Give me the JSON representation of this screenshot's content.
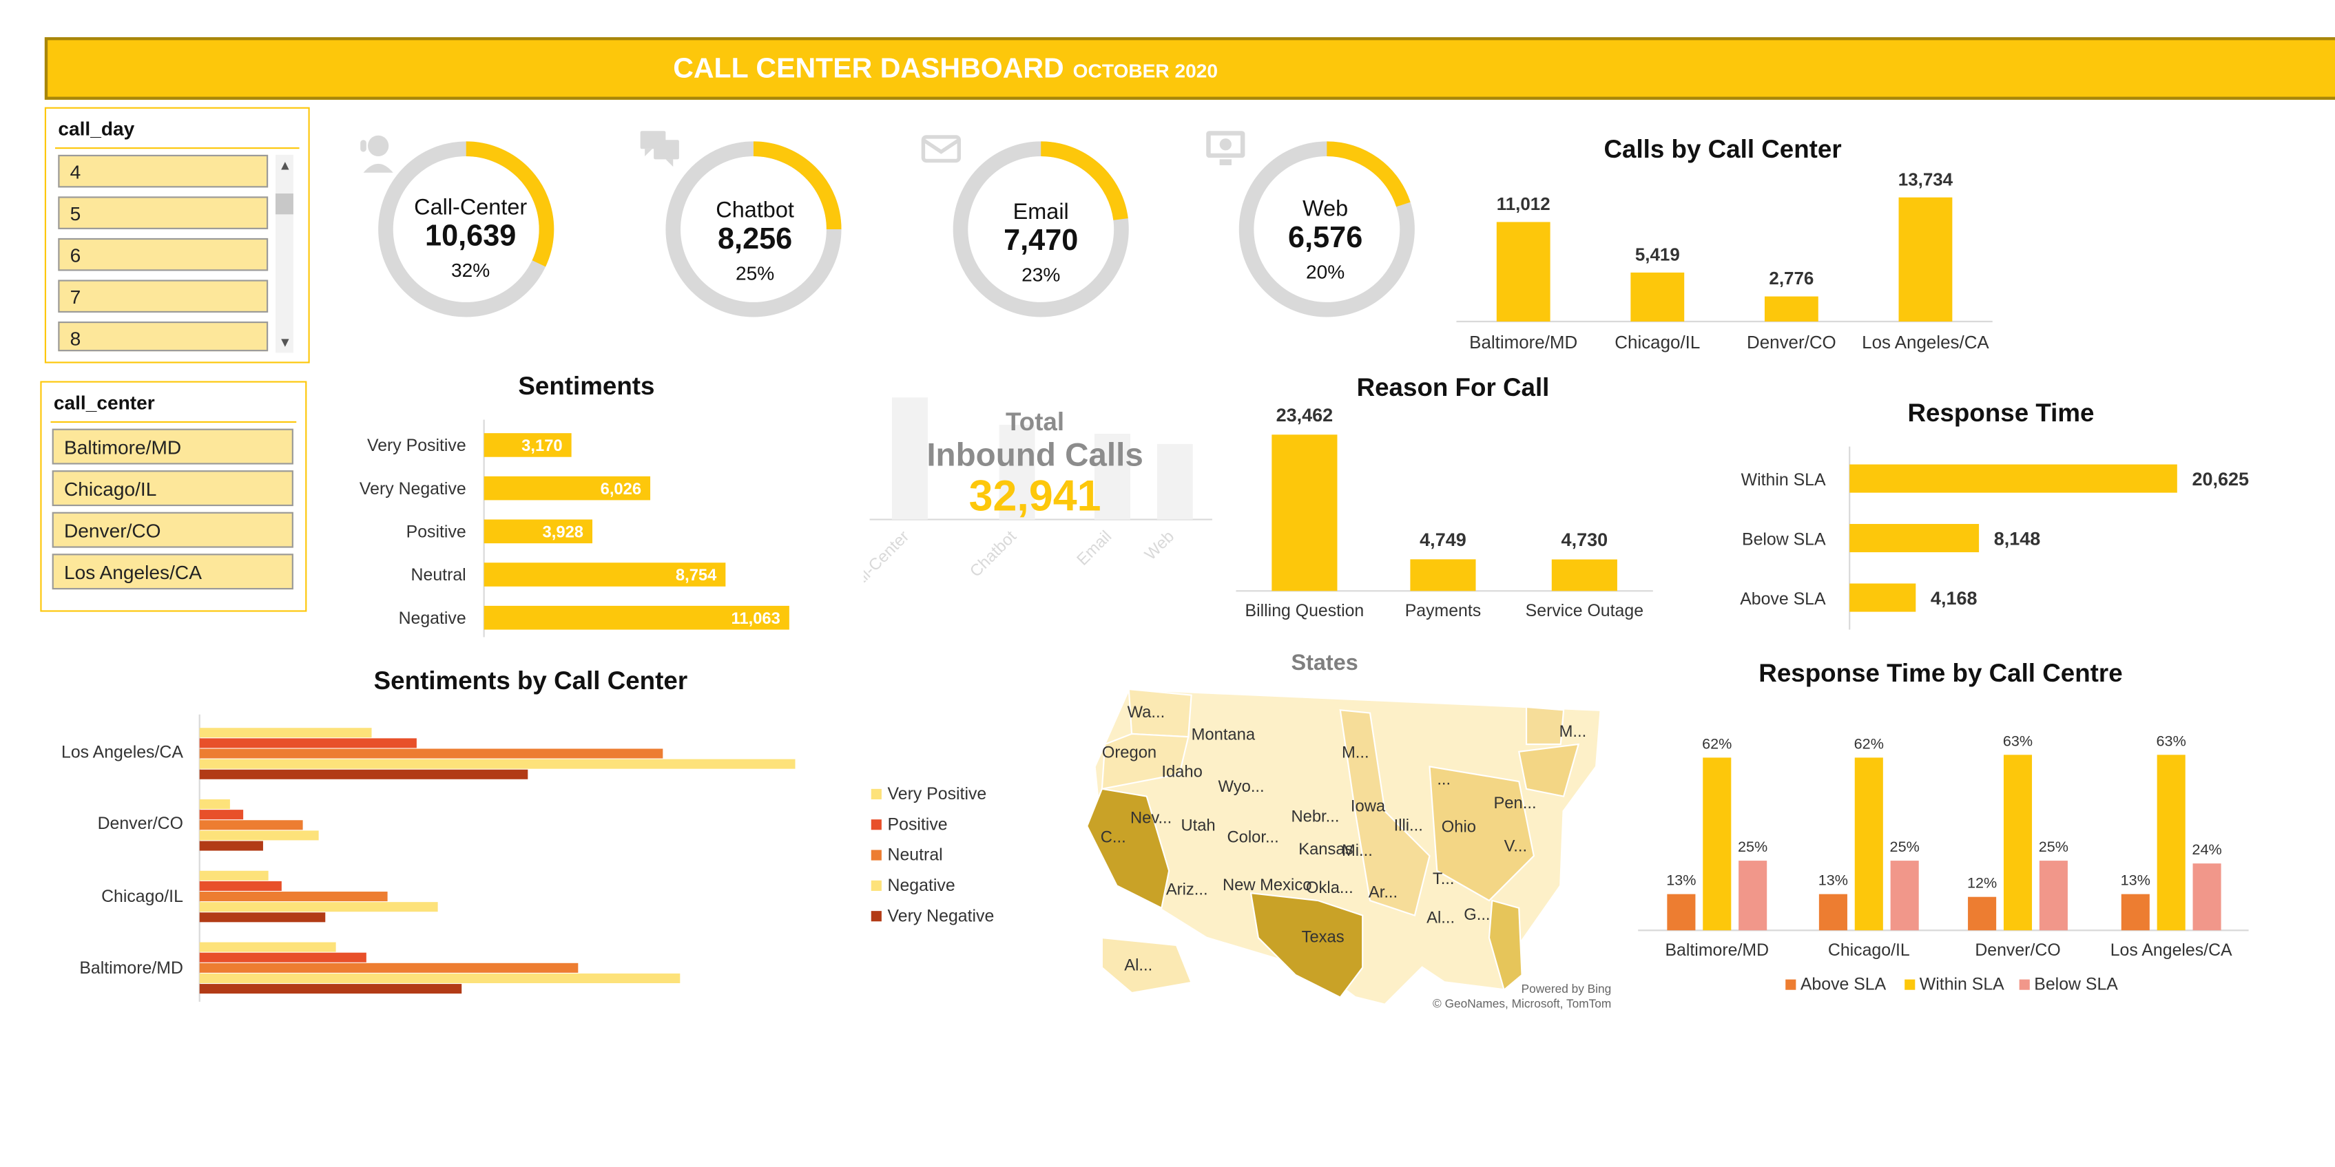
{
  "header": {
    "title": "CALL CENTER DASHBOARD",
    "subtitle": "OCTOBER 2020"
  },
  "slicers": {
    "call_day": {
      "title": "call_day",
      "items": [
        "4",
        "5",
        "6",
        "7",
        "8"
      ]
    },
    "call_center": {
      "title": "call_center",
      "items": [
        "Baltimore/MD",
        "Chicago/IL",
        "Denver/CO",
        "Los Angeles/CA"
      ]
    }
  },
  "kpis": [
    {
      "label": "Call-Center",
      "value": "10,639",
      "percent": "32%",
      "share": 0.32,
      "icon": "call-center-agent-icon"
    },
    {
      "label": "Chatbot",
      "value": "8,256",
      "percent": "25%",
      "share": 0.25,
      "icon": "chat-bubbles-icon"
    },
    {
      "label": "Email",
      "value": "7,470",
      "percent": "23%",
      "share": 0.23,
      "icon": "email-icon"
    },
    {
      "label": "Web",
      "value": "6,576",
      "percent": "20%",
      "share": 0.2,
      "icon": "web-monitor-icon"
    }
  ],
  "total": {
    "label1": "Total",
    "label2": "Inbound Calls",
    "value": "32,941"
  },
  "colors": {
    "accent": "#fdc70b",
    "ring_bg": "#d9d9d9",
    "orange": "#ed7d31",
    "salmon": "#f1978a",
    "darkred": "#b23b16",
    "red": "#e8502a",
    "lightyellow": "#fde27a"
  },
  "map": {
    "title": "States",
    "credit1": "Powered by Bing",
    "credit2": "© GeoNames, Microsoft, TomTom",
    "labels": [
      "Wa...",
      "Montana",
      "Oregon",
      "Idaho",
      "Wyo...",
      "Nev...",
      "Utah",
      "Color...",
      "Nebr...",
      "Kansas",
      "Iowa",
      "Illi...",
      "Ohio",
      "Pen...",
      "Texas",
      "Okla...",
      "Ariz...",
      "New Mexico",
      "Al...",
      "M...",
      "Mi...",
      "Ar...",
      "Al...",
      "G...",
      "T...",
      "V...",
      "C...",
      "M...",
      "..."
    ]
  },
  "chart_data": [
    {
      "id": "calls_by_center",
      "type": "bar",
      "title": "Calls by Call Center",
      "categories": [
        "Baltimore/MD",
        "Chicago/IL",
        "Denver/CO",
        "Los Angeles/CA"
      ],
      "values": [
        11012,
        5419,
        2776,
        13734
      ],
      "value_labels": [
        "11,012",
        "5,419",
        "2,776",
        "13,734"
      ],
      "ylim": [
        0,
        14000
      ]
    },
    {
      "id": "sentiments",
      "type": "bar",
      "orientation": "horizontal",
      "title": "Sentiments",
      "categories": [
        "Very Positive",
        "Very Negative",
        "Positive",
        "Neutral",
        "Negative"
      ],
      "values": [
        3170,
        6026,
        3928,
        8754,
        11063
      ],
      "value_labels": [
        "3,170",
        "6,026",
        "3,928",
        "8,754",
        "11,063"
      ],
      "xlim": [
        0,
        11063
      ]
    },
    {
      "id": "inbound_by_channel",
      "type": "bar",
      "categories": [
        "Call-Center",
        "Chatbot",
        "Email",
        "Web"
      ],
      "values": [
        10639,
        8256,
        7470,
        6576
      ],
      "ylim": [
        0,
        10639
      ]
    },
    {
      "id": "reason_for_call",
      "type": "bar",
      "title": "Reason For Call",
      "categories": [
        "Billing Question",
        "Payments",
        "Service Outage"
      ],
      "values": [
        23462,
        4749,
        4730
      ],
      "value_labels": [
        "23,462",
        "4,749",
        "4,730"
      ],
      "ylim": [
        0,
        23462
      ]
    },
    {
      "id": "response_time",
      "type": "bar",
      "orientation": "horizontal",
      "title": "Response Time",
      "categories": [
        "Within SLA",
        "Below SLA",
        "Above SLA"
      ],
      "values": [
        20625,
        8148,
        4168
      ],
      "value_labels": [
        "20,625",
        "8,148",
        "4,168"
      ],
      "xlim": [
        0,
        20625
      ]
    },
    {
      "id": "sentiments_by_center",
      "type": "bar",
      "orientation": "horizontal",
      "title": "Sentiments by Call Center",
      "categories": [
        "Los Angeles/CA",
        "Denver/CO",
        "Chicago/IL",
        "Baltimore/MD"
      ],
      "series": [
        {
          "name": "Very Positive",
          "color": "#fde27a",
          "values": [
            1300,
            230,
            520,
            1030
          ]
        },
        {
          "name": "Positive",
          "color": "#e8502a",
          "values": [
            1640,
            330,
            620,
            1260
          ]
        },
        {
          "name": "Neutral",
          "color": "#ed7d31",
          "values": [
            3500,
            780,
            1420,
            2860
          ]
        },
        {
          "name": "Negative",
          "color": "#fde27a",
          "values": [
            4500,
            900,
            1800,
            3630
          ]
        },
        {
          "name": "Very Negative",
          "color": "#b23b16",
          "values": [
            2480,
            480,
            950,
            1980
          ]
        }
      ],
      "xlim": [
        0,
        4500
      ],
      "legend": "right"
    },
    {
      "id": "response_time_by_centre",
      "type": "bar",
      "title": "Response Time by Call Centre",
      "categories": [
        "Baltimore/MD",
        "Chicago/IL",
        "Denver/CO",
        "Los Angeles/CA"
      ],
      "series": [
        {
          "name": "Above SLA",
          "color": "#ed7d31",
          "values": [
            13,
            13,
            12,
            13
          ],
          "labels": [
            "13%",
            "13%",
            "12%",
            "13%"
          ]
        },
        {
          "name": "Within SLA",
          "color": "#fdc70b",
          "values": [
            62,
            62,
            63,
            63
          ],
          "labels": [
            "62%",
            "62%",
            "63%",
            "63%"
          ]
        },
        {
          "name": "Below SLA",
          "color": "#f1978a",
          "values": [
            25,
            25,
            25,
            24
          ],
          "labels": [
            "25%",
            "25%",
            "25%",
            "24%"
          ]
        }
      ],
      "ylim": [
        0,
        70
      ],
      "legend": "bottom"
    }
  ]
}
